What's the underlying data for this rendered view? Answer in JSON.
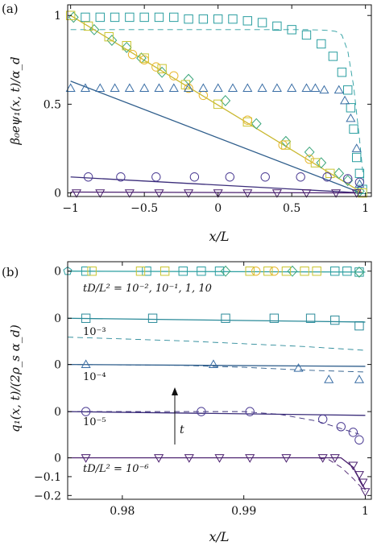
{
  "chart_data": [
    {
      "panel_label": "(a)",
      "type": "line",
      "xlabel": "x/L",
      "ylabel": "β₀eψ₁(x, t)/α_d",
      "xlim": [
        -1.02,
        1.04
      ],
      "ylim": [
        -0.02,
        1.06
      ],
      "xticks": [
        -1,
        -0.5,
        0,
        0.5,
        1
      ],
      "xticklabels": [
        "−1",
        "−0.5",
        "0",
        "0.5",
        "1"
      ],
      "yticks": [
        0,
        0.5,
        1
      ],
      "yticklabels": [
        "0",
        "0.5",
        "1"
      ],
      "grid": false,
      "lines": [
        {
          "color": "#2a9ea0",
          "style": "dashed",
          "x": [
            -1,
            -0.8,
            -0.6,
            -0.4,
            -0.2,
            0,
            0.2,
            0.4,
            0.6,
            0.7,
            0.76,
            0.8,
            0.84,
            0.88,
            0.92,
            0.96,
            0.99
          ],
          "y": [
            0.92,
            0.92,
            0.92,
            0.92,
            0.92,
            0.92,
            0.92,
            0.92,
            0.92,
            0.918,
            0.915,
            0.91,
            0.89,
            0.8,
            0.6,
            0.3,
            0.05
          ]
        },
        {
          "color": "#c9b830",
          "style": "solid",
          "x": [
            -1,
            0.98
          ],
          "y": [
            1.0,
            0.0
          ]
        },
        {
          "color": "#2f5e8c",
          "style": "solid",
          "x": [
            -1,
            0.97
          ],
          "y": [
            0.63,
            0.0
          ]
        },
        {
          "color": "#3b2d7a",
          "style": "solid",
          "x": [
            -1,
            0.98
          ],
          "y": [
            0.09,
            0.0
          ]
        },
        {
          "color": "#4a1f6e",
          "style": "solid",
          "x": [
            -1,
            0.98
          ],
          "y": [
            0.005,
            0.0
          ]
        }
      ],
      "markers": [
        {
          "shape": "square",
          "color": "#2a9ea0",
          "x": [
            -0.9,
            -0.8,
            -0.7,
            -0.6,
            -0.5,
            -0.4,
            -0.3,
            -0.2,
            -0.1,
            0.0,
            0.1,
            0.2,
            0.3,
            0.4,
            0.5,
            0.6,
            0.7,
            0.78,
            0.84,
            0.88,
            0.9,
            0.92,
            0.94,
            0.96,
            0.98
          ],
          "y": [
            0.99,
            0.99,
            0.99,
            0.99,
            0.99,
            0.99,
            0.99,
            0.98,
            0.98,
            0.98,
            0.98,
            0.97,
            0.96,
            0.94,
            0.92,
            0.89,
            0.84,
            0.77,
            0.68,
            0.58,
            0.48,
            0.36,
            0.2,
            0.11,
            0.02
          ]
        },
        {
          "shape": "diamond",
          "color": "#3aa57a",
          "x": [
            -0.98,
            -0.84,
            -0.72,
            -0.62,
            -0.52,
            -0.38,
            -0.2,
            0.05,
            0.26,
            0.46,
            0.62,
            0.7,
            0.82,
            0.88,
            0.96
          ],
          "y": [
            0.99,
            0.92,
            0.86,
            0.82,
            0.76,
            0.68,
            0.64,
            0.52,
            0.39,
            0.29,
            0.23,
            0.17,
            0.11,
            0.07,
            0.01
          ]
        },
        {
          "shape": "square",
          "color": "#c9c530",
          "x": [
            -1.0,
            -0.88,
            -0.74,
            -0.62,
            -0.5,
            -0.38,
            -0.22,
            0.0,
            0.2,
            0.46,
            0.66,
            0.76,
            0.98
          ],
          "y": [
            1.0,
            0.94,
            0.88,
            0.83,
            0.76,
            0.7,
            0.61,
            0.5,
            0.4,
            0.27,
            0.17,
            0.11,
            0.0
          ]
        },
        {
          "shape": "circle",
          "color": "#e8b830",
          "x": [
            -0.58,
            -0.5,
            -0.42,
            -0.3,
            -0.2,
            -0.1,
            0.2,
            0.44,
            0.62
          ],
          "y": [
            0.78,
            0.75,
            0.71,
            0.66,
            0.59,
            0.55,
            0.41,
            0.27,
            0.19
          ]
        },
        {
          "shape": "triangle-up",
          "color": "#3a6ea5",
          "x": [
            -1.0,
            -0.9,
            -0.8,
            -0.7,
            -0.6,
            -0.5,
            -0.4,
            -0.3,
            -0.2,
            -0.1,
            0.0,
            0.1,
            0.2,
            0.3,
            0.4,
            0.5,
            0.6,
            0.66,
            0.72,
            0.82,
            0.86,
            0.9,
            0.94,
            0.96
          ],
          "y": [
            0.59,
            0.59,
            0.59,
            0.59,
            0.59,
            0.59,
            0.59,
            0.59,
            0.59,
            0.59,
            0.59,
            0.59,
            0.59,
            0.59,
            0.59,
            0.59,
            0.59,
            0.59,
            0.58,
            0.58,
            0.52,
            0.42,
            0.25,
            0.05
          ]
        },
        {
          "shape": "circle",
          "color": "#4b3b93",
          "x": [
            -0.88,
            -0.66,
            -0.42,
            -0.16,
            0.08,
            0.32,
            0.56,
            0.74,
            0.88,
            0.96
          ],
          "y": [
            0.09,
            0.09,
            0.09,
            0.09,
            0.09,
            0.09,
            0.09,
            0.09,
            0.08,
            0.06
          ]
        },
        {
          "shape": "triangle-down",
          "color": "#4a1f6e",
          "x": [
            -0.96,
            -0.8,
            -0.6,
            -0.4,
            -0.2,
            0.0,
            0.2,
            0.4,
            0.6,
            0.8,
            0.94
          ],
          "y": [
            0.0,
            0.0,
            0.0,
            0.0,
            0.0,
            0.0,
            0.0,
            0.0,
            0.0,
            0.0,
            0.0
          ]
        }
      ]
    },
    {
      "panel_label": "(b)",
      "type": "line",
      "xlabel": "x/L",
      "ylabel": "q₁(x, t)/(2ρ_s α_d)",
      "xlim": [
        0.9755,
        1.0005
      ],
      "xticks": [
        0.98,
        0.99,
        1
      ],
      "xticklabels": [
        "0.98",
        "0.99",
        "1"
      ],
      "yticklabels": [
        "0",
        "0",
        "0",
        "0",
        "0",
        "−0.1",
        "−0.2"
      ],
      "y_axis_note": "curves are vertically offset; each stacked curve has its own 0 level",
      "offsets": [
        0.99,
        0.74,
        0.495,
        0.245,
        0.0
      ],
      "ylim": [
        -0.22,
        1.04
      ],
      "annotations": [
        "tD/L² = 10⁻², 10⁻¹, 1, 10",
        "10⁻³",
        "10⁻⁴",
        "10⁻⁵",
        "tD/L² = 10⁻⁶",
        "t"
      ],
      "lines": [
        {
          "color": "#2a9ea0",
          "style": "solid",
          "offset": 0.99,
          "x": [
            0.9755,
            1.0
          ],
          "y": [
            0.0,
            -0.005
          ]
        },
        {
          "color": "#2a8a99",
          "style": "solid",
          "offset": 0.74,
          "x": [
            0.9755,
            1.0
          ],
          "y": [
            0.0,
            -0.02
          ]
        },
        {
          "color": "#2a8a99",
          "style": "dashed",
          "offset": 0.74,
          "x": [
            0.9755,
            0.985,
            0.995,
            1.0
          ],
          "y": [
            -0.1,
            -0.12,
            -0.15,
            -0.17
          ]
        },
        {
          "color": "#2f5e8c",
          "style": "solid",
          "offset": 0.495,
          "x": [
            0.9755,
            1.0
          ],
          "y": [
            0.0,
            -0.01
          ]
        },
        {
          "color": "#2f5e8c",
          "style": "dashed",
          "offset": 0.495,
          "x": [
            0.9755,
            0.985,
            0.99,
            0.995,
            1.0
          ],
          "y": [
            0.0,
            -0.005,
            -0.015,
            -0.03,
            -0.04
          ]
        },
        {
          "color": "#3b2d7a",
          "style": "solid",
          "offset": 0.245,
          "x": [
            0.9755,
            1.0
          ],
          "y": [
            0.0,
            -0.02
          ]
        },
        {
          "color": "#3b2d7a",
          "style": "dashed",
          "offset": 0.245,
          "x": [
            0.9755,
            0.99,
            0.993,
            0.996,
            0.998,
            0.9995
          ],
          "y": [
            0.0,
            0.0,
            -0.015,
            -0.05,
            -0.09,
            -0.12
          ]
        },
        {
          "color": "#4a1f6e",
          "style": "solid",
          "offset": 0.0,
          "x": [
            0.9755,
            0.998,
            0.999,
            1.0
          ],
          "y": [
            0.0,
            0.0,
            -0.05,
            -0.17
          ]
        },
        {
          "color": "#4a1f6e",
          "style": "dashed",
          "offset": 0.0,
          "x": [
            0.9755,
            0.996,
            0.997,
            0.998,
            0.999,
            1.0
          ],
          "y": [
            0.0,
            0.0,
            -0.01,
            -0.05,
            -0.11,
            -0.18
          ]
        }
      ],
      "markers": [
        {
          "shape": "square",
          "color": "#2a9ea0",
          "offset": 0.99,
          "x": [
            0.977,
            0.982,
            0.985,
            0.9865,
            0.988,
            0.9975,
            0.9985,
            0.9995
          ],
          "y": [
            0,
            0,
            0,
            0,
            0,
            0,
            0,
            -0.005
          ]
        },
        {
          "shape": "diamond",
          "color": "#3aa57a",
          "offset": 0.99,
          "x": [
            0.9885,
            0.994,
            0.9995
          ],
          "y": [
            0,
            0,
            -0.005
          ]
        },
        {
          "shape": "square",
          "color": "#c9c530",
          "offset": 0.99,
          "x": [
            0.9775,
            0.9815,
            0.9835,
            0.9905,
            0.992,
            0.9935,
            0.995,
            0.996
          ],
          "y": [
            0,
            0,
            0,
            0,
            0,
            0,
            0,
            0
          ]
        },
        {
          "shape": "circle",
          "color": "#e8b830",
          "offset": 0.99,
          "x": [
            0.991,
            0.9925
          ],
          "y": [
            0,
            0
          ]
        },
        {
          "shape": "pentagon",
          "color": "#2a9ea0",
          "offset": 0.99,
          "x": [
            0.9755
          ],
          "y": [
            0
          ]
        },
        {
          "shape": "square",
          "color": "#2a8a99",
          "offset": 0.74,
          "x": [
            0.977,
            0.9825,
            0.9885,
            0.9925,
            0.9955,
            0.9975,
            0.9995
          ],
          "y": [
            0,
            0,
            0,
            0,
            0,
            -0.01,
            -0.04
          ]
        },
        {
          "shape": "triangle-up",
          "color": "#3a6ea5",
          "offset": 0.495,
          "x": [
            0.977,
            0.9875,
            0.9945,
            0.997,
            0.9995
          ],
          "y": [
            0.0,
            0.0,
            -0.02,
            -0.08,
            -0.08
          ]
        },
        {
          "shape": "circle",
          "color": "#4b3b93",
          "offset": 0.245,
          "x": [
            0.977,
            0.9865,
            0.9905,
            0.9965,
            0.998,
            0.999,
            0.9995
          ],
          "y": [
            0,
            0,
            0,
            -0.04,
            -0.08,
            -0.11,
            -0.15
          ]
        },
        {
          "shape": "triangle-down",
          "color": "#4a1f6e",
          "offset": 0.0,
          "x": [
            0.977,
            0.983,
            0.9855,
            0.988,
            0.9905,
            0.9935,
            0.9965,
            0.9975,
            0.999,
            0.9995,
            0.9998,
            1.0
          ],
          "y": [
            0,
            0,
            0,
            0,
            0,
            0,
            0,
            0,
            -0.04,
            -0.09,
            -0.13,
            -0.18
          ]
        }
      ]
    }
  ]
}
